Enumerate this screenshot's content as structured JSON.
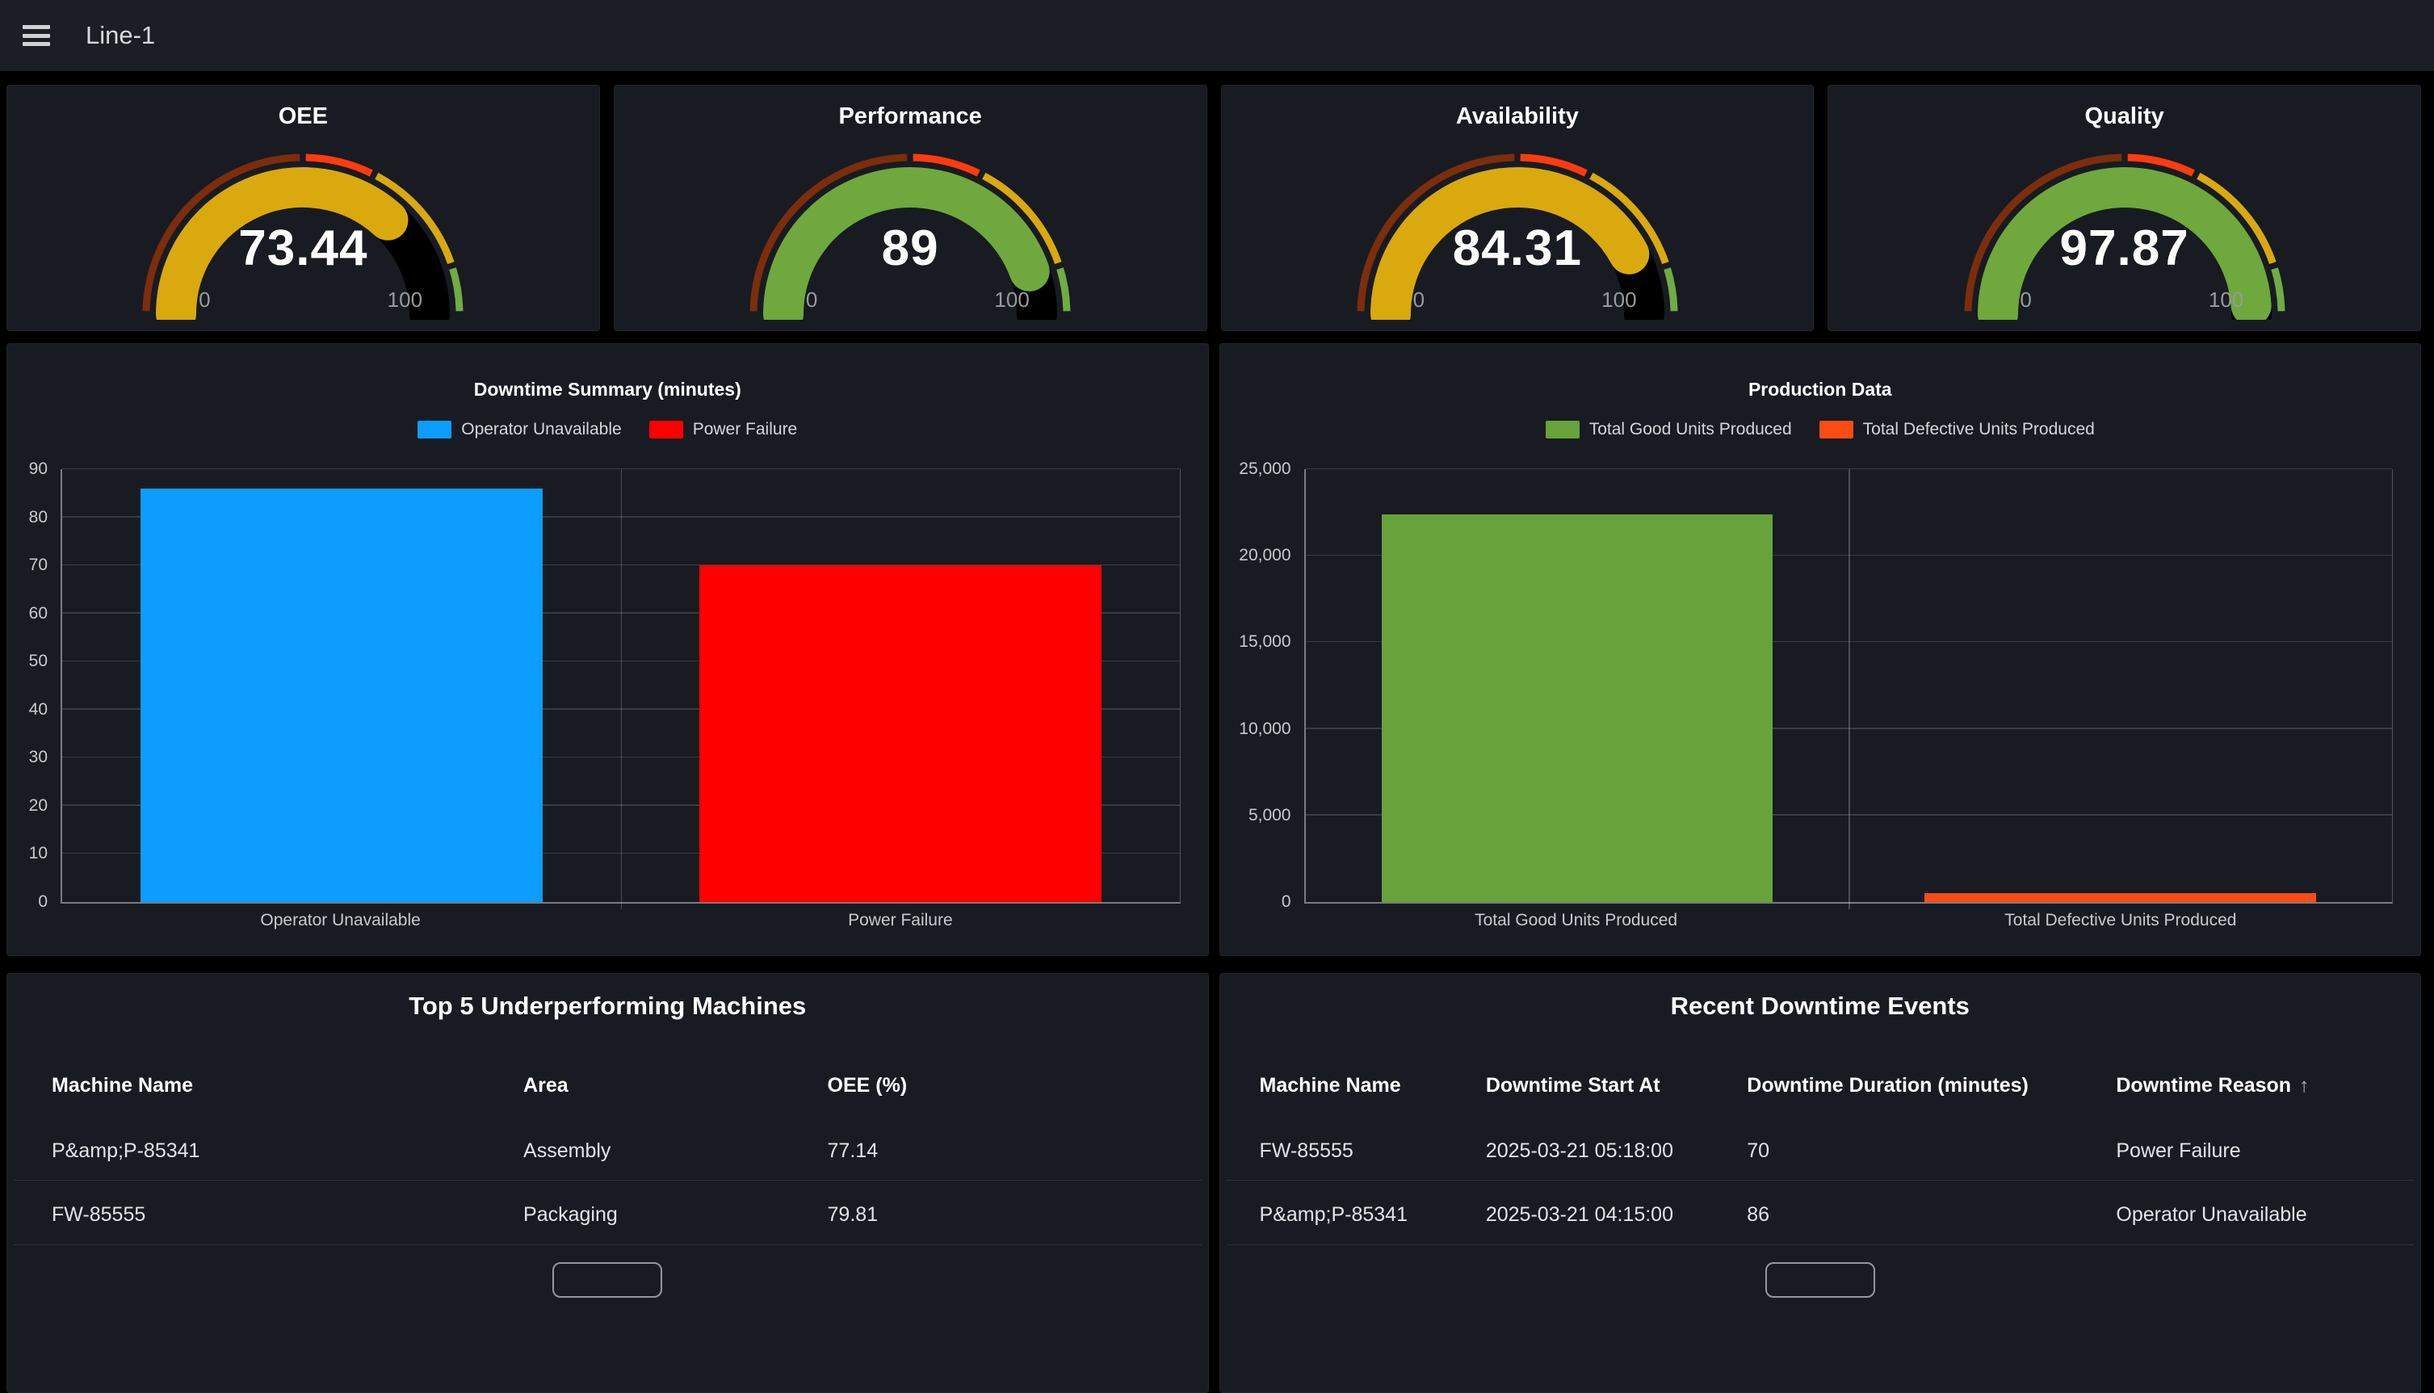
{
  "nav": {
    "title": "Line-1",
    "menu_icon": "hamburger-icon"
  },
  "gauges": [
    {
      "title": "OEE",
      "value": "73.44",
      "percent": 73.44,
      "fill": "#d9a90d"
    },
    {
      "title": "Performance",
      "value": "89",
      "percent": 89,
      "fill": "#6fa83c"
    },
    {
      "title": "Availability",
      "value": "84.31",
      "percent": 84.31,
      "fill": "#d9a90d"
    },
    {
      "title": "Quality",
      "value": "97.87",
      "percent": 97.87,
      "fill": "#6fa83c"
    }
  ],
  "gauge_common": {
    "min": "0",
    "max": "100",
    "ring": [
      {
        "to": 50,
        "color": "#7c2d0c"
      },
      {
        "to": 65,
        "color": "#fe3b0f"
      },
      {
        "to": 90,
        "color": "#d9a90d"
      },
      {
        "to": 100,
        "color": "#71ab43"
      }
    ],
    "empty_color": "#000000"
  },
  "chart_data": [
    {
      "type": "bar",
      "title": "Downtime Summary (minutes)",
      "categories": [
        "Operator Unavailable",
        "Power Failure"
      ],
      "values": [
        86,
        70
      ],
      "colors": [
        "#0d9dfe",
        "#fe0000"
      ],
      "legend": [
        "Operator Unavailable",
        "Power Failure"
      ],
      "legend_position": "top",
      "grid": true,
      "xlabel": "",
      "ylabel": "",
      "ylim": [
        0,
        90
      ],
      "yticks": [
        0,
        10,
        20,
        30,
        40,
        50,
        60,
        70,
        80,
        90
      ]
    },
    {
      "type": "bar",
      "title": "Production Data",
      "categories": [
        "Total Good Units Produced",
        "Total Defective Units Produced"
      ],
      "values": [
        22400,
        500
      ],
      "colors": [
        "#68a23b",
        "#fc4b14"
      ],
      "legend": [
        "Total Good Units Produced",
        "Total Defective Units Produced"
      ],
      "legend_position": "top",
      "grid": true,
      "xlabel": "",
      "ylabel": "",
      "ylim": [
        0,
        25000
      ],
      "yticks": [
        0,
        5000,
        10000,
        15000,
        20000,
        25000
      ],
      "ytick_labels": [
        "0",
        "5,000",
        "10,000",
        "15,000",
        "20,000",
        "25,000"
      ]
    }
  ],
  "tables": [
    {
      "title": "Top 5 Underperforming Machines",
      "columns": [
        "Machine Name",
        "Area",
        "OEE (%)"
      ],
      "sort": null,
      "rows": [
        [
          "P&amp;P-85341",
          "Assembly",
          "77.14"
        ],
        [
          "FW-85555",
          "Packaging",
          "79.81"
        ]
      ]
    },
    {
      "title": "Recent Downtime Events",
      "columns": [
        "Machine Name",
        "Downtime Start At",
        "Downtime Duration (minutes)",
        "Downtime Reason"
      ],
      "sort": {
        "column": 3,
        "direction": "asc",
        "icon": "sort-ascending-icon"
      },
      "rows": [
        [
          "FW-85555",
          "2025-03-21 05:18:00",
          "70",
          "Power Failure"
        ],
        [
          "P&amp;P-85341",
          "2025-03-21 04:15:00",
          "86",
          "Operator Unavailable"
        ]
      ]
    }
  ]
}
